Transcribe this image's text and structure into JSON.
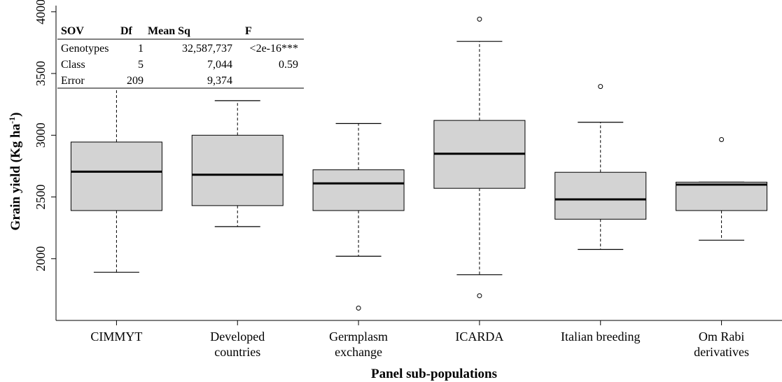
{
  "chart_data": {
    "type": "box",
    "xlabel": "Panel sub-populations",
    "ylabel_main": "Grain yield (Kg ha",
    "ylabel_sup": "-1",
    "ylabel_close": ")",
    "ylim": [
      1500,
      4050
    ],
    "yticks": [
      2000,
      2500,
      3000,
      3500,
      4000
    ],
    "grid": false,
    "box_fill": "#d3d3d3",
    "categories": [
      {
        "lines": [
          "CIMMYT"
        ],
        "whisker_low": 1890,
        "q1": 2390,
        "median": 2705,
        "q3": 2945,
        "whisker_high": 3400,
        "outliers": []
      },
      {
        "lines": [
          "Developed",
          "countries"
        ],
        "whisker_low": 2260,
        "q1": 2430,
        "median": 2680,
        "q3": 3000,
        "whisker_high": 3280,
        "outliers": []
      },
      {
        "lines": [
          "Germplasm",
          "exchange"
        ],
        "whisker_low": 2020,
        "q1": 2390,
        "median": 2610,
        "q3": 2720,
        "whisker_high": 3095,
        "outliers": [
          1600
        ]
      },
      {
        "lines": [
          "ICARDA"
        ],
        "whisker_low": 1870,
        "q1": 2570,
        "median": 2850,
        "q3": 3120,
        "whisker_high": 3760,
        "outliers": [
          3940,
          1700
        ]
      },
      {
        "lines": [
          "Italian breeding"
        ],
        "whisker_low": 2075,
        "q1": 2320,
        "median": 2480,
        "q3": 2700,
        "whisker_high": 3105,
        "outliers": [
          3395
        ]
      },
      {
        "lines": [
          "Om Rabi",
          "derivatives"
        ],
        "whisker_low": 2150,
        "q1": 2390,
        "median": 2600,
        "q3": 2620,
        "whisker_high": 2620,
        "outliers": [
          2965
        ]
      }
    ],
    "annotation_table": {
      "headers": [
        "SOV",
        "Df",
        "Mean Sq",
        "F"
      ],
      "rows": [
        [
          "Genotypes",
          "1",
          "32,587,737",
          "<2e-16***"
        ],
        [
          "Class",
          "5",
          "7,044",
          "0.59"
        ],
        [
          "Error",
          "209",
          "9,374",
          ""
        ]
      ]
    }
  }
}
